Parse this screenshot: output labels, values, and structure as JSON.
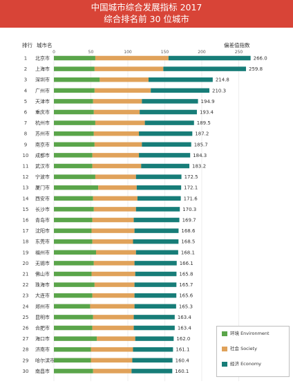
{
  "header": {
    "title_line1": "中国城市综合发展指标 2017",
    "title_line2": "综合排名前 30 位城市"
  },
  "columns": {
    "rank": "排行",
    "city": "城市名",
    "index": "偏差值指数"
  },
  "colors": {
    "banner": "#d84437",
    "environment": "#5aa54a",
    "society": "#e0a25a",
    "economy": "#177d78"
  },
  "legend": [
    {
      "key": "environment",
      "label": "环境 Environment"
    },
    {
      "key": "society",
      "label": "社会 Society"
    },
    {
      "key": "economy",
      "label": "经济 Economy"
    }
  ],
  "chart_data": {
    "type": "bar",
    "orientation": "horizontal",
    "stacked": true,
    "xlim": [
      0,
      270
    ],
    "xticks": [
      0,
      50,
      100,
      150,
      200,
      250
    ],
    "grid": true,
    "legend_position": "bottom-right",
    "categories": [
      "北京市",
      "上海市",
      "深圳市",
      "广州市",
      "天津市",
      "重庆市",
      "杭州市",
      "苏州市",
      "南京市",
      "成都市",
      "武汉市",
      "宁波市",
      "厦门市",
      "西安市",
      "长沙市",
      "青岛市",
      "沈阳市",
      "东莞市",
      "福州市",
      "无锡市",
      "佛山市",
      "珠海市",
      "大连市",
      "郑州市",
      "昆明市",
      "合肥市",
      "海口市",
      "济南市",
      "哈尔滨市",
      "南昌市"
    ],
    "ranks": [
      1,
      2,
      3,
      4,
      5,
      6,
      7,
      8,
      9,
      10,
      11,
      12,
      13,
      14,
      15,
      16,
      17,
      18,
      19,
      20,
      21,
      22,
      23,
      24,
      25,
      26,
      27,
      28,
      29,
      30
    ],
    "totals": [
      266.0,
      259.8,
      214.8,
      210.3,
      194.9,
      193.4,
      189.5,
      187.2,
      185.7,
      184.3,
      183.2,
      172.5,
      172.1,
      171.6,
      170.3,
      169.7,
      168.6,
      168.5,
      168.1,
      166.1,
      165.8,
      165.7,
      165.6,
      165.3,
      163.4,
      163.4,
      162.0,
      161.1,
      160.4,
      160.1
    ],
    "total_labels": [
      "266.0",
      "259.8",
      "214.8",
      "210.3",
      "194.9",
      "193.4",
      "189.5",
      "187.2",
      "185.7",
      "184.3",
      "183.2",
      "172.5",
      "172.1",
      "171.6",
      "170.3",
      "169.7",
      "168.6",
      "168.5",
      "168.1",
      "166.1",
      "165.8",
      "165.7",
      "165.6",
      "165.3",
      "163.4",
      "163.4",
      "162.0",
      "161.1",
      "160.4",
      "160.1"
    ],
    "series": [
      {
        "name": "环境 Environment",
        "key": "environment",
        "values": [
          56,
          55,
          62,
          55,
          53,
          54,
          56,
          54,
          55,
          52,
          52,
          56,
          60,
          53,
          54,
          52,
          51,
          52,
          57,
          54,
          51,
          55,
          52,
          49,
          53,
          52,
          58,
          50,
          50,
          53
        ]
      },
      {
        "name": "社会 Society",
        "key": "society",
        "values": [
          99,
          93,
          66,
          76,
          66,
          62,
          67,
          61,
          64,
          63,
          66,
          55,
          52,
          60,
          57,
          56,
          58,
          55,
          54,
          55,
          59,
          54,
          57,
          60,
          55,
          56,
          52,
          57,
          56,
          52
        ]
      },
      {
        "name": "经济 Economy",
        "key": "economy",
        "values": [
          111,
          111.8,
          86.8,
          79.3,
          75.9,
          77.4,
          66.5,
          72.2,
          66.7,
          69.3,
          65.2,
          61.5,
          60.1,
          58.6,
          59.3,
          61.7,
          59.6,
          61.5,
          57.1,
          57.1,
          55.8,
          56.7,
          56.6,
          56.3,
          55.4,
          55.4,
          52,
          54.1,
          54.4,
          55.1
        ]
      }
    ]
  }
}
